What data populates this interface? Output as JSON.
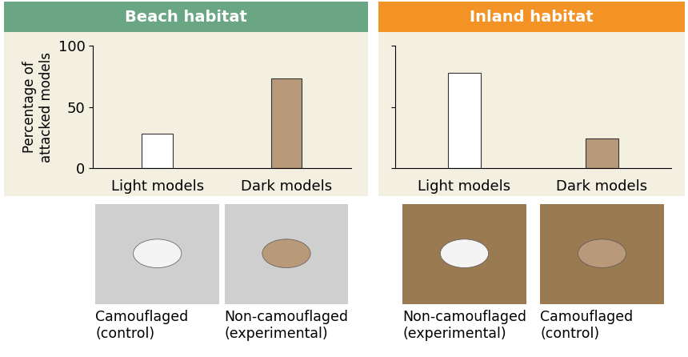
{
  "chart_data": [
    {
      "type": "bar",
      "title": "Beach habitat",
      "categories": [
        "Light models",
        "Dark models"
      ],
      "values": [
        28,
        73
      ],
      "colors": [
        "#ffffff",
        "#b89a7a"
      ],
      "y_label": "Percentage of\nattacked models",
      "ylim": [
        0,
        100
      ],
      "yticks": [
        0,
        50,
        100
      ],
      "grid": false,
      "annotations": [
        "Camouflaged\n(control)",
        "Non-camouflaged\n(experimental)"
      ]
    },
    {
      "type": "bar",
      "title": "Inland habitat",
      "categories": [
        "Light models",
        "Dark models"
      ],
      "values": [
        78,
        24
      ],
      "colors": [
        "#ffffff",
        "#b89a7a"
      ],
      "ylim": [
        0,
        100
      ],
      "yticks": [
        0,
        50,
        100
      ],
      "grid": false,
      "tick_labels": "x",
      "annotations": [
        "Non-camouflaged\n(experimental)",
        "Camouflaged\n(control)"
      ]
    }
  ]
}
